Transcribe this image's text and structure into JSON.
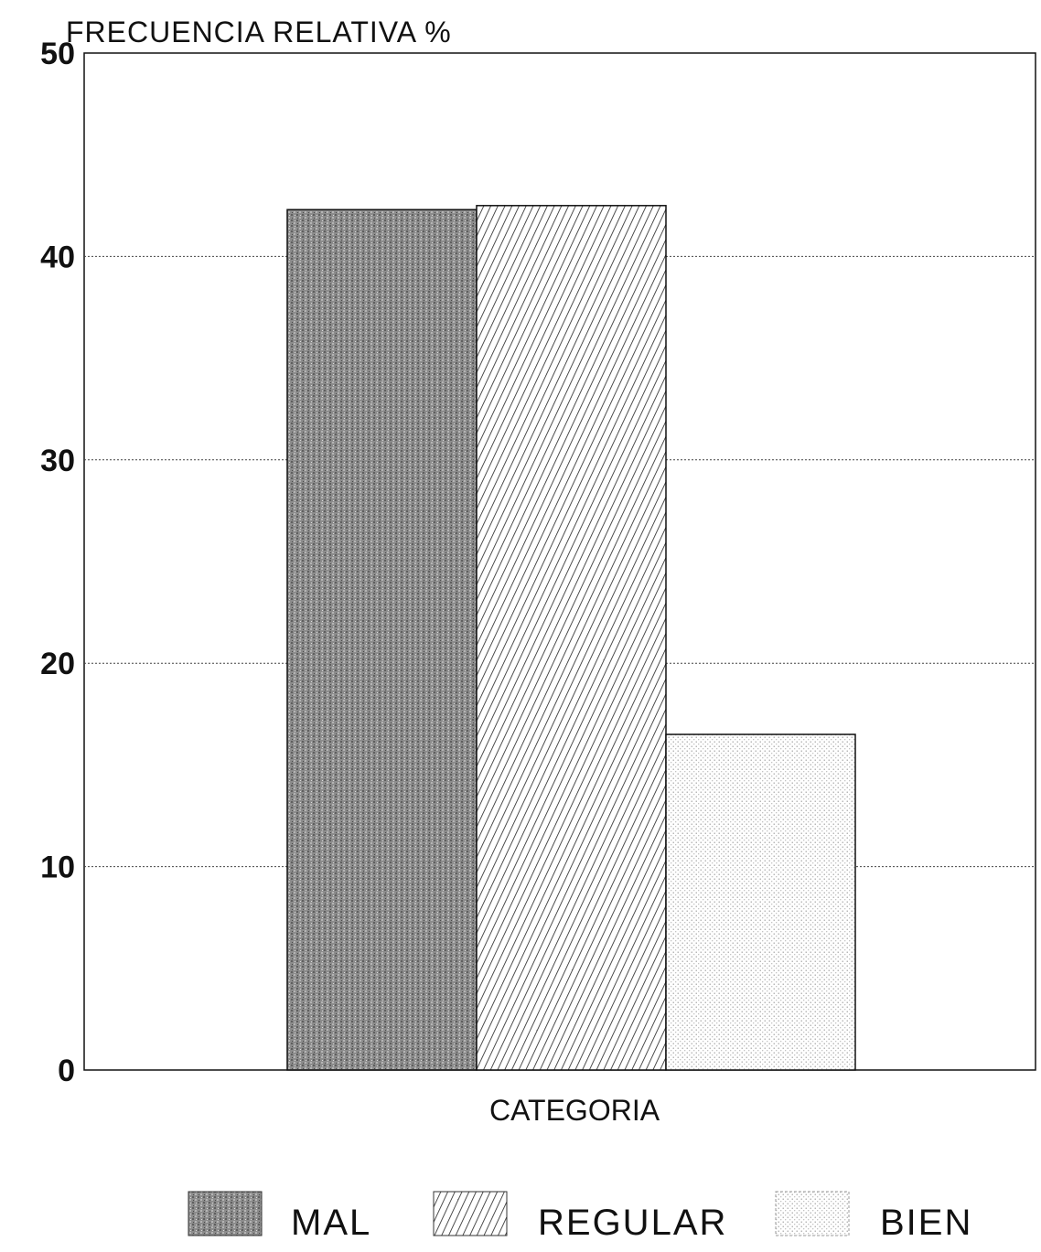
{
  "chart_data": {
    "type": "bar",
    "title": "",
    "ylabel": "FRECUENCIA RELATIVA %",
    "xlabel": "CATEGORIA",
    "ylim": [
      0,
      50
    ],
    "yticks": [
      "0",
      "10",
      "20",
      "30",
      "40",
      "50"
    ],
    "grid": true,
    "legend_position": "bottom",
    "series": [
      {
        "name": "MAL",
        "value": 42.3,
        "pattern": "dark-stipple"
      },
      {
        "name": "REGULAR",
        "value": 42.5,
        "pattern": "diagonal-hatch"
      },
      {
        "name": "BIEN",
        "value": 16.5,
        "pattern": "light-dots"
      }
    ],
    "colors": {
      "ink": "#111111",
      "mal_fill": "#8c8c8c",
      "background": "#ffffff"
    }
  }
}
